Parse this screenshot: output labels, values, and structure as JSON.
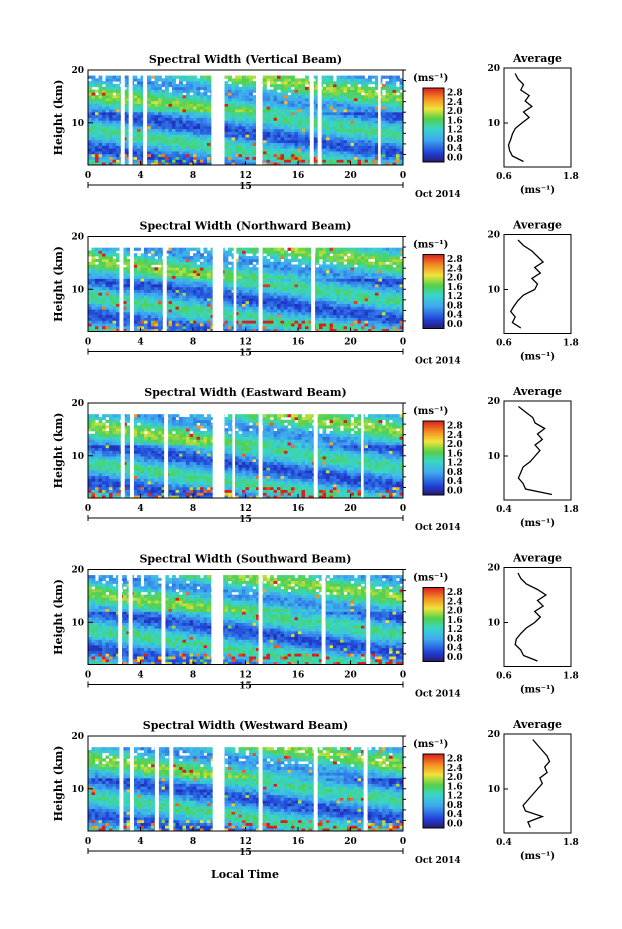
{
  "figure": {
    "xlabel": "Local Time",
    "date_label": "Oct 2014",
    "day_label": "15",
    "avg_title": "Average",
    "cbar_unit": "(ms⁻¹)",
    "avg_xunit": "(ms⁻¹)"
  },
  "chart_data": [
    {
      "type": "heatmap",
      "title": "Spectral Width (Vertical Beam)",
      "ylabel": "Height (km)",
      "x_ticks": [
        "0",
        "4",
        "8",
        "12",
        "16",
        "20",
        "0"
      ],
      "y_ticks": [
        "20",
        "10"
      ],
      "xlim": [
        0,
        24
      ],
      "ylim": [
        2,
        20
      ],
      "colorbar_ticks": [
        "2.8",
        "2.4",
        "2.0",
        "1.6",
        "1.2",
        "0.8",
        "0.4",
        "0.0"
      ],
      "clim": [
        0,
        3.0
      ],
      "gaps_hours": [
        [
          2.5,
          2.8
        ],
        [
          3.1,
          3.4
        ],
        [
          4.2,
          4.5
        ],
        [
          9.4,
          10.4
        ],
        [
          12.8,
          13.3
        ],
        [
          16.9,
          17.2
        ],
        [
          17.5,
          17.8
        ],
        [
          22.1,
          22.3
        ]
      ],
      "top_km": 19,
      "average": {
        "title": "Average",
        "xlim": [
          0.6,
          1.8
        ],
        "x_ticks": [
          "0.6",
          "1.8"
        ],
        "y_ticks": [
          "20",
          "10"
        ],
        "profile_km": [
          3,
          4,
          5,
          6,
          7,
          8,
          9,
          10,
          11,
          12,
          13,
          14,
          15,
          16,
          17,
          18,
          19
        ],
        "profile_ms": [
          0.95,
          0.75,
          0.7,
          0.68,
          0.72,
          0.75,
          0.8,
          0.92,
          1.05,
          0.95,
          1.1,
          0.98,
          1.05,
          0.9,
          0.95,
          0.85,
          0.8
        ]
      }
    },
    {
      "type": "heatmap",
      "title": "Spectral Width (Northward Beam)",
      "ylabel": "Height (km)",
      "x_ticks": [
        "0",
        "4",
        "8",
        "12",
        "16",
        "20",
        "0"
      ],
      "y_ticks": [
        "20",
        "10"
      ],
      "xlim": [
        0,
        24
      ],
      "ylim": [
        2,
        20
      ],
      "colorbar_ticks": [
        "2.8",
        "2.4",
        "2.0",
        "1.6",
        "1.2",
        "0.8",
        "0.4",
        "0.0"
      ],
      "clim": [
        0,
        3.0
      ],
      "gaps_hours": [
        [
          2.4,
          2.7
        ],
        [
          3.2,
          3.5
        ],
        [
          5.7,
          6.0
        ],
        [
          9.5,
          10.3
        ],
        [
          11.1,
          11.3
        ],
        [
          13.0,
          13.3
        ],
        [
          17.0,
          17.3
        ]
      ],
      "top_km": 18,
      "average": {
        "title": "Average",
        "xlim": [
          0.6,
          1.8
        ],
        "x_ticks": [
          "0.6",
          "1.8"
        ],
        "y_ticks": [
          "20",
          "10"
        ],
        "profile_km": [
          3,
          4,
          5,
          6,
          7,
          8,
          9,
          10,
          11,
          12,
          13,
          14,
          15,
          16,
          17,
          18,
          19
        ],
        "profile_ms": [
          0.9,
          0.75,
          0.8,
          0.72,
          0.78,
          0.85,
          0.95,
          1.15,
          1.2,
          1.1,
          1.25,
          1.15,
          1.3,
          1.2,
          1.1,
          0.95,
          0.85
        ]
      }
    },
    {
      "type": "heatmap",
      "title": "Spectral Width (Eastward Beam)",
      "ylabel": "Height (km)",
      "x_ticks": [
        "0",
        "4",
        "8",
        "12",
        "16",
        "20",
        "0"
      ],
      "y_ticks": [
        "20",
        "10"
      ],
      "xlim": [
        0,
        24
      ],
      "ylim": [
        2,
        20
      ],
      "colorbar_ticks": [
        "2.8",
        "2.4",
        "2.0",
        "1.6",
        "1.2",
        "0.8",
        "0.4",
        "0.0"
      ],
      "clim": [
        0,
        3.0
      ],
      "gaps_hours": [
        [
          2.5,
          2.8
        ],
        [
          3.2,
          3.5
        ],
        [
          5.8,
          6.1
        ],
        [
          9.5,
          10.4
        ],
        [
          11.0,
          11.2
        ],
        [
          13.0,
          13.3
        ],
        [
          17.2,
          17.5
        ],
        [
          20.8,
          21.0
        ]
      ],
      "top_km": 18,
      "average": {
        "title": "Average",
        "xlim": [
          0.4,
          1.8
        ],
        "x_ticks": [
          "0.4",
          "1.8"
        ],
        "y_ticks": [
          "20",
          "10"
        ],
        "profile_km": [
          3,
          4,
          5,
          6,
          7,
          8,
          9,
          10,
          11,
          12,
          13,
          14,
          15,
          16,
          17,
          18,
          19
        ],
        "profile_ms": [
          1.4,
          0.85,
          0.8,
          0.7,
          0.75,
          0.8,
          0.95,
          1.05,
          1.15,
          1.05,
          1.2,
          1.1,
          1.25,
          1.05,
          1.0,
          0.85,
          0.7
        ]
      }
    },
    {
      "type": "heatmap",
      "title": "Spectral Width (Southward Beam)",
      "ylabel": "Height (km)",
      "x_ticks": [
        "0",
        "4",
        "8",
        "12",
        "16",
        "20",
        "0"
      ],
      "y_ticks": [
        "20",
        "10"
      ],
      "xlim": [
        0,
        24
      ],
      "ylim": [
        2,
        20
      ],
      "colorbar_ticks": [
        "2.8",
        "2.4",
        "2.0",
        "1.6",
        "1.2",
        "0.8",
        "0.4",
        "0.0"
      ],
      "clim": [
        0,
        3.0
      ],
      "gaps_hours": [
        [
          2.3,
          2.6
        ],
        [
          3.1,
          3.4
        ],
        [
          5.6,
          5.9
        ],
        [
          9.4,
          10.3
        ],
        [
          13.0,
          13.3
        ],
        [
          17.8,
          18.1
        ],
        [
          21.2,
          21.5
        ]
      ],
      "top_km": 19,
      "average": {
        "title": "Average",
        "xlim": [
          0.6,
          1.8
        ],
        "x_ticks": [
          "0.6",
          "1.8"
        ],
        "y_ticks": [
          "20",
          "10"
        ],
        "profile_km": [
          3,
          4,
          5,
          6,
          7,
          8,
          9,
          10,
          11,
          12,
          13,
          14,
          15,
          16,
          17,
          18,
          19
        ],
        "profile_ms": [
          1.2,
          0.95,
          0.9,
          0.8,
          0.82,
          0.9,
          1.0,
          1.15,
          1.25,
          1.15,
          1.3,
          1.2,
          1.35,
          1.2,
          1.0,
          0.9,
          0.85
        ]
      }
    },
    {
      "type": "heatmap",
      "title": "Spectral Width (Westward Beam)",
      "ylabel": "Height (km)",
      "x_ticks": [
        "0",
        "4",
        "8",
        "12",
        "16",
        "20",
        "0"
      ],
      "y_ticks": [
        "20",
        "10"
      ],
      "xlim": [
        0,
        24
      ],
      "ylim": [
        2,
        20
      ],
      "colorbar_ticks": [
        "2.8",
        "2.4",
        "2.0",
        "1.6",
        "1.2",
        "0.8",
        "0.4",
        "0.0"
      ],
      "clim": [
        0,
        3.0
      ],
      "gaps_hours": [
        [
          2.4,
          2.7
        ],
        [
          3.2,
          3.5
        ],
        [
          5.1,
          5.4
        ],
        [
          6.2,
          6.5
        ],
        [
          9.5,
          10.4
        ],
        [
          13.0,
          13.3
        ],
        [
          17.2,
          17.5
        ],
        [
          21.0,
          21.3
        ]
      ],
      "top_km": 18,
      "average": {
        "title": "Average",
        "xlim": [
          0.4,
          1.8
        ],
        "x_ticks": [
          "0.4",
          "1.8"
        ],
        "y_ticks": [
          "20",
          "10"
        ],
        "profile_km": [
          3,
          4,
          5,
          6,
          7,
          8,
          9,
          10,
          11,
          12,
          13,
          14,
          15,
          16,
          17,
          18,
          19
        ],
        "profile_ms": [
          0.95,
          0.9,
          1.2,
          0.85,
          0.8,
          0.9,
          1.0,
          1.1,
          1.2,
          1.15,
          1.3,
          1.25,
          1.35,
          1.3,
          1.2,
          1.1,
          1.0
        ]
      }
    }
  ]
}
